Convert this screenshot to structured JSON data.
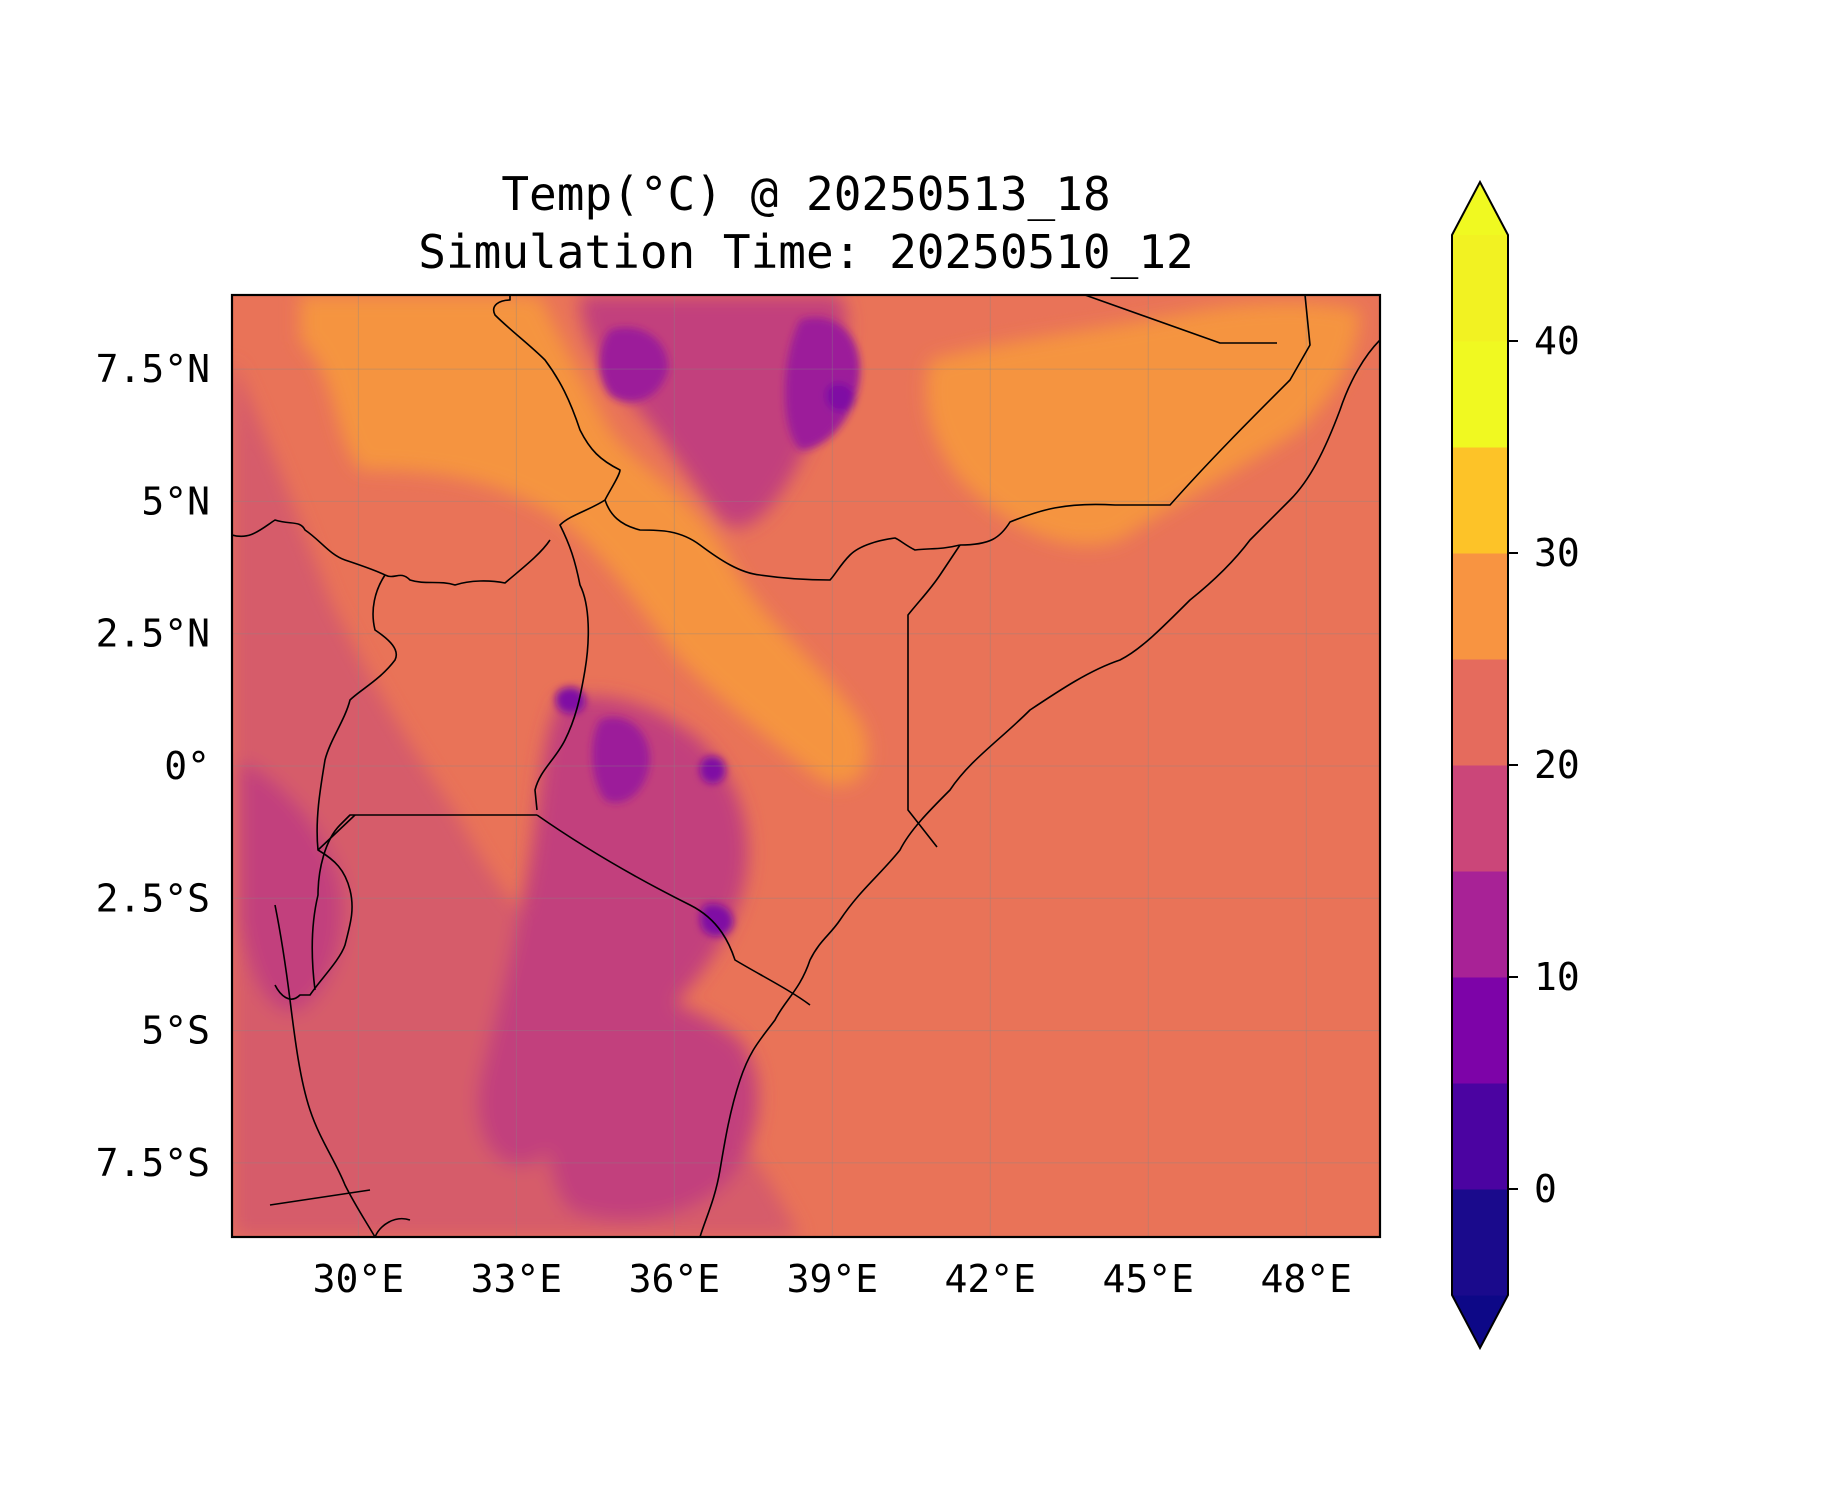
{
  "title": {
    "line1": "Temp(°C) @ 20250513_18",
    "line2": "Simulation Time: 20250510_12"
  },
  "map": {
    "lon_range": [
      27.6,
      49.4
    ],
    "lat_range": [
      -8.9,
      8.9
    ],
    "lon_ticks": [
      {
        "value": 30,
        "label": "30°E"
      },
      {
        "value": 33,
        "label": "33°E"
      },
      {
        "value": 36,
        "label": "36°E"
      },
      {
        "value": 39,
        "label": "39°E"
      },
      {
        "value": 42,
        "label": "42°E"
      },
      {
        "value": 45,
        "label": "45°E"
      },
      {
        "value": 48,
        "label": "48°E"
      }
    ],
    "lat_ticks": [
      {
        "value": 7.5,
        "label": "7.5°N"
      },
      {
        "value": 5,
        "label": "5°N"
      },
      {
        "value": 2.5,
        "label": "2.5°N"
      },
      {
        "value": 0,
        "label": "0°"
      },
      {
        "value": -2.5,
        "label": "2.5°S"
      },
      {
        "value": -5,
        "label": "5°S"
      },
      {
        "value": -7.5,
        "label": "7.5°S"
      }
    ],
    "gridlines": true
  },
  "colorbar": {
    "levels": [
      -5,
      0,
      5,
      10,
      15,
      20,
      25,
      30,
      35,
      40,
      45
    ],
    "colors": [
      "#1a0a8c",
      "#4b03a1",
      "#7d03a8",
      "#a82296",
      "#cb4679",
      "#e56b5d",
      "#f89441",
      "#fdc328",
      "#f0f921",
      "#f2f222"
    ],
    "under_color": "#0d0887",
    "over_color": "#f0f921",
    "ticks": [
      {
        "value": 0,
        "label": "0"
      },
      {
        "value": 10,
        "label": "10"
      },
      {
        "value": 20,
        "label": "20"
      },
      {
        "value": 30,
        "label": "30"
      },
      {
        "value": 40,
        "label": "40"
      }
    ],
    "extend": "both"
  }
}
